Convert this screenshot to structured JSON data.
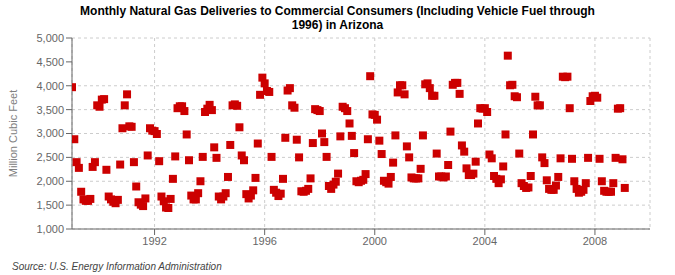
{
  "chart_data": {
    "type": "scatter",
    "title": "Monthly Natural Gas Deliveries to Commercial Consumers (Including Vehicle Fuel through\n1996) in Arizona",
    "ylabel": "Million Cubic Feet",
    "source": "Source: U.S. Energy Information Administration",
    "color": "#cc0000",
    "marker": "square",
    "grid": true,
    "xlim": [
      1989.0,
      2010.0
    ],
    "ylim": [
      1000,
      5000
    ],
    "xticks": [
      1992,
      1996,
      2000,
      2004,
      2008
    ],
    "yticks": [
      {
        "value": 1000,
        "label": "1,000"
      },
      {
        "value": 1500,
        "label": "1,500"
      },
      {
        "value": 2000,
        "label": "2,000"
      },
      {
        "value": 2500,
        "label": "2,500"
      },
      {
        "value": 3000,
        "label": "3,000"
      },
      {
        "value": 3500,
        "label": "3,500"
      },
      {
        "value": 4000,
        "label": "4,000"
      },
      {
        "value": 4500,
        "label": "4,500"
      },
      {
        "value": 5000,
        "label": "5,000"
      }
    ],
    "x": [
      1989,
      1989.0833,
      1989.1667,
      1989.25,
      1989.3333,
      1989.4167,
      1989.5,
      1989.5833,
      1989.6667,
      1989.75,
      1989.8333,
      1989.9167,
      1990,
      1990.0833,
      1990.1667,
      1990.25,
      1990.3333,
      1990.4167,
      1990.5,
      1990.5833,
      1990.6667,
      1990.75,
      1990.8333,
      1990.9167,
      1991,
      1991.0833,
      1991.1667,
      1991.25,
      1991.3333,
      1991.4167,
      1991.5,
      1991.5833,
      1991.6667,
      1991.75,
      1991.8333,
      1991.9167,
      1992,
      1992.0833,
      1992.1667,
      1992.25,
      1992.3333,
      1992.4167,
      1992.5,
      1992.5833,
      1992.6667,
      1992.75,
      1992.8333,
      1992.9167,
      1993,
      1993.0833,
      1993.1667,
      1993.25,
      1993.3333,
      1993.4167,
      1993.5,
      1993.5833,
      1993.6667,
      1993.75,
      1993.8333,
      1993.9167,
      1994,
      1994.0833,
      1994.1667,
      1994.25,
      1994.3333,
      1994.4167,
      1994.5,
      1994.5833,
      1994.6667,
      1994.75,
      1994.8333,
      1994.9167,
      1995,
      1995.0833,
      1995.1667,
      1995.25,
      1995.3333,
      1995.4167,
      1995.5,
      1995.5833,
      1995.6667,
      1995.75,
      1995.8333,
      1995.9167,
      1996,
      1996.0833,
      1996.1667,
      1996.25,
      1996.3333,
      1996.4167,
      1996.5,
      1996.5833,
      1996.6667,
      1996.75,
      1996.8333,
      1996.9167,
      1997,
      1997.0833,
      1997.1667,
      1997.25,
      1997.3333,
      1997.4167,
      1997.5,
      1997.5833,
      1997.6667,
      1997.75,
      1997.8333,
      1997.9167,
      1998,
      1998.0833,
      1998.1667,
      1998.25,
      1998.3333,
      1998.4167,
      1998.5,
      1998.5833,
      1998.6667,
      1998.75,
      1998.8333,
      1998.9167,
      1999,
      1999.0833,
      1999.1667,
      1999.25,
      1999.3333,
      1999.4167,
      1999.5,
      1999.5833,
      1999.6667,
      1999.75,
      1999.8333,
      1999.9167,
      2000,
      2000.0833,
      2000.1667,
      2000.25,
      2000.3333,
      2000.4167,
      2000.5,
      2000.5833,
      2000.6667,
      2000.75,
      2000.8333,
      2000.9167,
      2001,
      2001.0833,
      2001.1667,
      2001.25,
      2001.3333,
      2001.4167,
      2001.5,
      2001.5833,
      2001.6667,
      2001.75,
      2001.8333,
      2001.9167,
      2002,
      2002.0833,
      2002.1667,
      2002.25,
      2002.3333,
      2002.4167,
      2002.5,
      2002.5833,
      2002.6667,
      2002.75,
      2002.8333,
      2002.9167,
      2003,
      2003.0833,
      2003.1667,
      2003.25,
      2003.3333,
      2003.4167,
      2003.5,
      2003.5833,
      2003.6667,
      2003.75,
      2003.8333,
      2003.9167,
      2004,
      2004.0833,
      2004.1667,
      2004.25,
      2004.3333,
      2004.4167,
      2004.5,
      2004.5833,
      2004.6667,
      2004.75,
      2004.8333,
      2004.9167,
      2005,
      2005.0833,
      2005.1667,
      2005.25,
      2005.3333,
      2005.4167,
      2005.5,
      2005.5833,
      2005.6667,
      2005.75,
      2005.8333,
      2005.9167,
      2006,
      2006.0833,
      2006.1667,
      2006.25,
      2006.3333,
      2006.4167,
      2006.5,
      2006.5833,
      2006.6667,
      2006.75,
      2006.8333,
      2006.9167,
      2007,
      2007.0833,
      2007.1667,
      2007.25,
      2007.3333,
      2007.4167,
      2007.5,
      2007.5833,
      2007.6667,
      2007.75,
      2007.8333,
      2007.9167,
      2008,
      2008.0833,
      2008.1667,
      2008.25,
      2008.3333,
      2008.4167,
      2008.5,
      2008.5833,
      2008.6667,
      2008.75,
      2008.8333,
      2008.9167,
      2009,
      2009.0833
    ],
    "values": [
      3970,
      2880,
      2400,
      2280,
      1780,
      1620,
      1590,
      1590,
      1630,
      2300,
      2400,
      3590,
      3560,
      3710,
      3720,
      2240,
      1680,
      1620,
      1570,
      1540,
      1610,
      2350,
      3110,
      3590,
      3820,
      3150,
      3140,
      2400,
      1890,
      1560,
      1510,
      1480,
      1640,
      2540,
      3110,
      3060,
      3050,
      2990,
      2420,
      1680,
      1580,
      1450,
      1440,
      1630,
      2050,
      2520,
      3530,
      3570,
      3570,
      3470,
      2980,
      2440,
      1700,
      1620,
      1620,
      1750,
      2000,
      2510,
      3450,
      3520,
      3600,
      3490,
      2710,
      2490,
      1680,
      1620,
      1680,
      1750,
      2090,
      2760,
      3590,
      3610,
      3580,
      3130,
      2540,
      2440,
      1730,
      1640,
      1700,
      1810,
      2070,
      2790,
      3810,
      4170,
      4050,
      3890,
      3870,
      2510,
      1820,
      1760,
      1690,
      1740,
      2050,
      2910,
      3900,
      3950,
      3590,
      3540,
      2870,
      2500,
      1790,
      1780,
      1800,
      1840,
      2060,
      2800,
      3510,
      3490,
      3470,
      3000,
      2820,
      2510,
      1900,
      1840,
      1930,
      1990,
      2160,
      2940,
      3560,
      3530,
      3470,
      3210,
      2950,
      2590,
      2000,
      1980,
      2010,
      2030,
      2150,
      2880,
      4200,
      3400,
      3390,
      3290,
      2850,
      2570,
      2010,
      1980,
      1950,
      2090,
      2390,
      2960,
      3860,
      4010,
      4010,
      3820,
      2730,
      2500,
      2080,
      2060,
      2060,
      2060,
      2260,
      2960,
      4030,
      4050,
      3950,
      3790,
      3790,
      2580,
      2100,
      2100,
      2080,
      2100,
      2340,
      3040,
      4020,
      4060,
      4060,
      3830,
      2750,
      2620,
      2270,
      2130,
      2130,
      2160,
      2410,
      3210,
      3530,
      3520,
      3530,
      3450,
      2560,
      2480,
      2110,
      2050,
      1960,
      2040,
      2310,
      2980,
      4630,
      4010,
      4020,
      3780,
      3760,
      2580,
      1960,
      1900,
      1860,
      1870,
      2110,
      2980,
      3770,
      3590,
      3590,
      2500,
      2380,
      2020,
      1840,
      1820,
      1820,
      1910,
      2090,
      2480,
      4190,
      4180,
      4190,
      3530,
      2470,
      2000,
      1840,
      1760,
      1780,
      1820,
      1960,
      2490,
      3680,
      3780,
      3790,
      3750,
      2470,
      2000,
      1800,
      1780,
      1780,
      1780,
      1960,
      2490,
      3520,
      3530,
      2460,
      1860
    ]
  }
}
